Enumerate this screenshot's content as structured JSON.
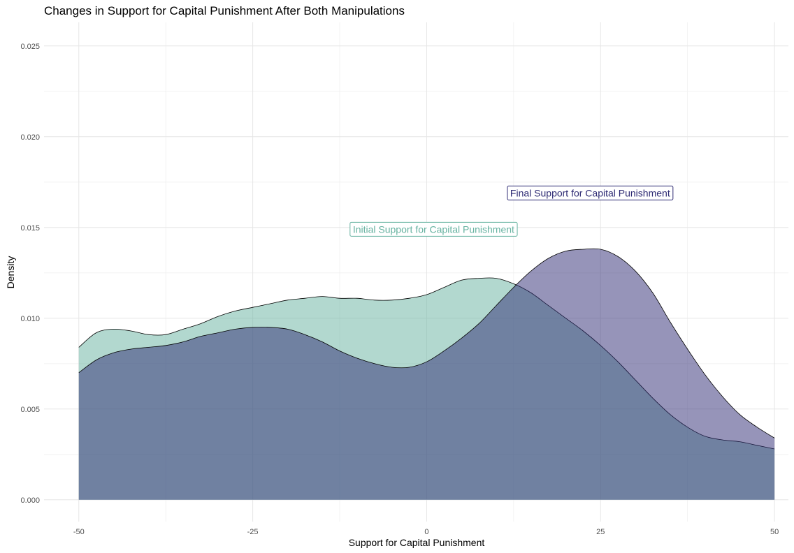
{
  "chart_data": {
    "type": "area",
    "title": "Changes in Support for Capital Punishment After Both Manipulations",
    "xlabel": "Support for Capital Punishment",
    "ylabel": "Density",
    "xlim": [
      -55,
      52
    ],
    "ylim": [
      -0.0012,
      0.0263
    ],
    "x_ticks": [
      -50,
      -25,
      0,
      25,
      50
    ],
    "x_tick_labels": [
      "-50",
      "-25",
      "0",
      "25",
      "50"
    ],
    "y_ticks": [
      0,
      0.005,
      0.01,
      0.015,
      0.02,
      0.025
    ],
    "y_tick_labels": [
      "0.000",
      "0.005",
      "0.010",
      "0.015",
      "0.020",
      "0.025"
    ],
    "grid": true,
    "series": [
      {
        "name": "Initial Support for Capital Punishment",
        "color": "#66b2a0",
        "fill_opacity": 0.5,
        "x": [
          -50,
          -47.5,
          -45,
          -42.5,
          -40,
          -37.5,
          -35,
          -32.5,
          -30,
          -27.5,
          -25,
          -22.5,
          -20,
          -17.5,
          -15,
          -12.5,
          -10,
          -7.5,
          -5,
          -2.5,
          0,
          2.5,
          5,
          7.5,
          10,
          12.5,
          15,
          17.5,
          20,
          22.5,
          25,
          27.5,
          30,
          32.5,
          35,
          37.5,
          40,
          42.5,
          45,
          47.5,
          50
        ],
        "values": [
          0.0084,
          0.0092,
          0.0094,
          0.0093,
          0.0091,
          0.0091,
          0.0094,
          0.0097,
          0.0101,
          0.0104,
          0.0106,
          0.0108,
          0.011,
          0.0111,
          0.0112,
          0.0111,
          0.0111,
          0.011,
          0.011,
          0.0111,
          0.0113,
          0.0117,
          0.0121,
          0.0122,
          0.0122,
          0.0119,
          0.0114,
          0.0107,
          0.01,
          0.0093,
          0.0085,
          0.0076,
          0.0066,
          0.0056,
          0.0047,
          0.004,
          0.0035,
          0.0033,
          0.0032,
          0.003,
          0.0028
        ]
      },
      {
        "name": "Final Support for Capital Punishment",
        "color": "#2d2a73",
        "fill_opacity": 0.5,
        "x": [
          -50,
          -47.5,
          -45,
          -42.5,
          -40,
          -37.5,
          -35,
          -32.5,
          -30,
          -27.5,
          -25,
          -22.5,
          -20,
          -17.5,
          -15,
          -12.5,
          -10,
          -7.5,
          -5,
          -2.5,
          0,
          2.5,
          5,
          7.5,
          10,
          12.5,
          15,
          17.5,
          20,
          22.5,
          25,
          27.5,
          30,
          32.5,
          35,
          37.5,
          40,
          42.5,
          45,
          47.5,
          50
        ],
        "values": [
          0.007,
          0.0077,
          0.0081,
          0.0083,
          0.0084,
          0.0085,
          0.0087,
          0.009,
          0.0092,
          0.0094,
          0.0095,
          0.0095,
          0.0094,
          0.0091,
          0.0087,
          0.0082,
          0.0078,
          0.0075,
          0.0073,
          0.0073,
          0.0076,
          0.0082,
          0.0089,
          0.0097,
          0.0107,
          0.0117,
          0.0126,
          0.0133,
          0.0137,
          0.0138,
          0.0138,
          0.0134,
          0.0126,
          0.0114,
          0.0098,
          0.0083,
          0.0069,
          0.0057,
          0.0047,
          0.004,
          0.0034
        ]
      }
    ],
    "annotations": [
      {
        "text": "Initial Support for Capital Punishment",
        "color": "#66b2a0",
        "x": 1,
        "y": 0.0149
      },
      {
        "text": "Final Support for Capital Punishment",
        "color": "#2d2a73",
        "x": 23.5,
        "y": 0.0169
      }
    ]
  }
}
